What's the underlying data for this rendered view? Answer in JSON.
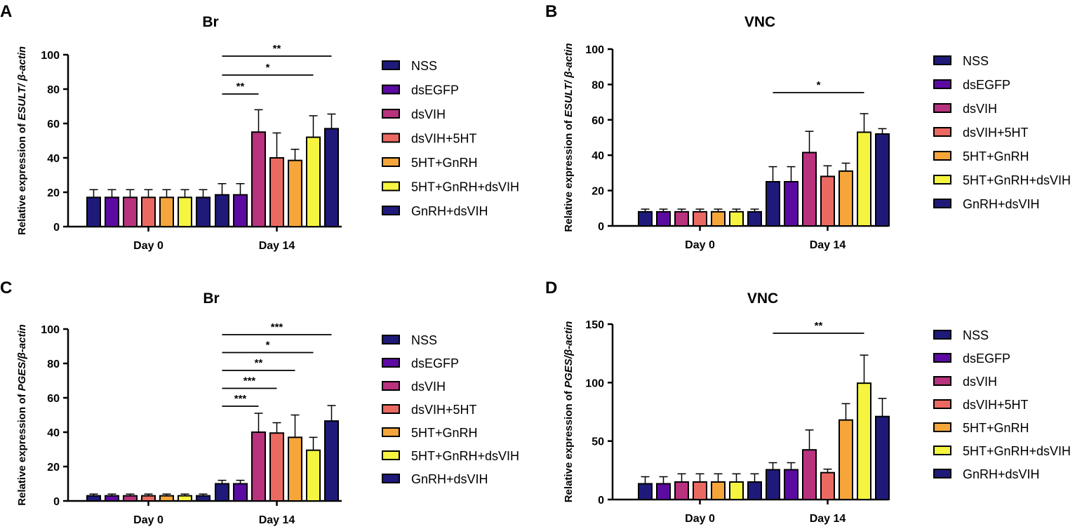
{
  "colors": {
    "NSS": "#1f1a7a",
    "dsEGFP": "#5d0aa3",
    "dsVIH": "#b8327e",
    "dsVIH+5HT": "#ea6a62",
    "5HT+GnRH": "#f6a53a",
    "5HT+GnRH+dsVIH": "#f5f540",
    "GnRH+dsVIH": "#1f1a7a"
  },
  "chart_data": [
    {
      "panel": "A",
      "type": "bar",
      "title": "Br",
      "ylabel_prefix": "Relative expression of ",
      "ylabel_gene": "ESULT/ β-actin",
      "ylim": [
        0,
        100
      ],
      "yticks": [
        "0",
        "20",
        "40",
        "60",
        "80",
        "100"
      ],
      "categories": [
        "Day 0",
        "Day 14"
      ],
      "series": [
        {
          "name": "NSS",
          "values": [
            17,
            18.5
          ],
          "errors": [
            4.5,
            6.5
          ]
        },
        {
          "name": "dsEGFP",
          "values": [
            17,
            18.5
          ],
          "errors": [
            4.5,
            6.5
          ]
        },
        {
          "name": "dsVIH",
          "values": [
            17,
            55
          ],
          "errors": [
            4.5,
            13
          ]
        },
        {
          "name": "dsVIH+5HT",
          "values": [
            17,
            40
          ],
          "errors": [
            4.5,
            14.5
          ]
        },
        {
          "name": "5HT+GnRH",
          "values": [
            17,
            38.5
          ],
          "errors": [
            4.5,
            6.5
          ]
        },
        {
          "name": "5HT+GnRH+dsVIH",
          "values": [
            17,
            52
          ],
          "errors": [
            4.5,
            12.5
          ]
        },
        {
          "name": "GnRH+dsVIH",
          "values": [
            17,
            57
          ],
          "errors": [
            4.5,
            8.5
          ]
        }
      ],
      "significance": [
        {
          "from": 0,
          "to": 6,
          "label": "**"
        },
        {
          "from": 0,
          "to": 5,
          "label": "*"
        },
        {
          "from": 0,
          "to": 2,
          "label": "**"
        }
      ]
    },
    {
      "panel": "B",
      "type": "bar",
      "title": "VNC",
      "ylabel_prefix": "Relative expression of ",
      "ylabel_gene": "ESULT/ β-actin",
      "ylim": [
        0,
        100
      ],
      "yticks": [
        "0",
        "20",
        "40",
        "60",
        "80",
        "100"
      ],
      "categories": [
        "Day 0",
        "Day 14"
      ],
      "series": [
        {
          "name": "NSS",
          "values": [
            8,
            25
          ],
          "errors": [
            1.5,
            8.5
          ]
        },
        {
          "name": "dsEGFP",
          "values": [
            8,
            25
          ],
          "errors": [
            1.5,
            8.5
          ]
        },
        {
          "name": "dsVIH",
          "values": [
            8,
            41.5
          ],
          "errors": [
            1.5,
            12
          ]
        },
        {
          "name": "dsVIH+5HT",
          "values": [
            8,
            28
          ],
          "errors": [
            1.5,
            6
          ]
        },
        {
          "name": "5HT+GnRH",
          "values": [
            8,
            31
          ],
          "errors": [
            1.5,
            4.5
          ]
        },
        {
          "name": "5HT+GnRH+dsVIH",
          "values": [
            8,
            53
          ],
          "errors": [
            1.5,
            10.5
          ]
        },
        {
          "name": "GnRH+dsVIH",
          "values": [
            8,
            52
          ],
          "errors": [
            1.5,
            3
          ]
        }
      ],
      "significance": [
        {
          "from": 0,
          "to": 5,
          "label": "*"
        }
      ]
    },
    {
      "panel": "C",
      "type": "bar",
      "title": "Br",
      "ylabel_prefix": "Relative expression of ",
      "ylabel_gene": "PGES/β-actin",
      "ylim": [
        0,
        100
      ],
      "yticks": [
        "0",
        "20",
        "40",
        "60",
        "80",
        "100"
      ],
      "categories": [
        "Day 0",
        "Day 14"
      ],
      "series": [
        {
          "name": "NSS",
          "values": [
            3,
            10
          ],
          "errors": [
            1,
            2
          ]
        },
        {
          "name": "dsEGFP",
          "values": [
            3,
            10
          ],
          "errors": [
            1,
            2
          ]
        },
        {
          "name": "dsVIH",
          "values": [
            3,
            40
          ],
          "errors": [
            1,
            11
          ]
        },
        {
          "name": "dsVIH+5HT",
          "values": [
            3,
            39.5
          ],
          "errors": [
            1,
            6
          ]
        },
        {
          "name": "5HT+GnRH",
          "values": [
            3,
            37
          ],
          "errors": [
            1,
            13
          ]
        },
        {
          "name": "5HT+GnRH+dsVIH",
          "values": [
            3,
            29.5
          ],
          "errors": [
            1,
            7.5
          ]
        },
        {
          "name": "GnRH+dsVIH",
          "values": [
            3,
            46.5
          ],
          "errors": [
            1,
            9
          ]
        }
      ],
      "significance": [
        {
          "from": 0,
          "to": 6,
          "label": "***"
        },
        {
          "from": 0,
          "to": 5,
          "label": "*"
        },
        {
          "from": 0,
          "to": 4,
          "label": "**"
        },
        {
          "from": 0,
          "to": 3,
          "label": "***"
        },
        {
          "from": 0,
          "to": 2,
          "label": "***"
        }
      ]
    },
    {
      "panel": "D",
      "type": "bar",
      "title": "VNC",
      "ylabel_prefix": "Relative expression of ",
      "ylabel_gene": "PGES/β-actin",
      "ylim": [
        0,
        150
      ],
      "yticks": [
        "0",
        "50",
        "100",
        "150"
      ],
      "categories": [
        "Day 0",
        "Day 14"
      ],
      "series": [
        {
          "name": "NSS",
          "values": [
            13.5,
            25.5
          ],
          "errors": [
            6,
            6
          ]
        },
        {
          "name": "dsEGFP",
          "values": [
            13.5,
            25.5
          ],
          "errors": [
            6,
            6
          ]
        },
        {
          "name": "dsVIH",
          "values": [
            15,
            42.5
          ],
          "errors": [
            7,
            17
          ]
        },
        {
          "name": "dsVIH+5HT",
          "values": [
            15,
            23
          ],
          "errors": [
            7,
            3
          ]
        },
        {
          "name": "5HT+GnRH",
          "values": [
            15,
            68
          ],
          "errors": [
            7,
            14
          ]
        },
        {
          "name": "5HT+GnRH+dsVIH",
          "values": [
            15,
            99.5
          ],
          "errors": [
            7,
            24
          ]
        },
        {
          "name": "GnRH+dsVIH",
          "values": [
            15,
            71
          ],
          "errors": [
            7,
            15.5
          ]
        }
      ],
      "significance": [
        {
          "from": 0,
          "to": 5,
          "label": "**"
        }
      ]
    }
  ]
}
